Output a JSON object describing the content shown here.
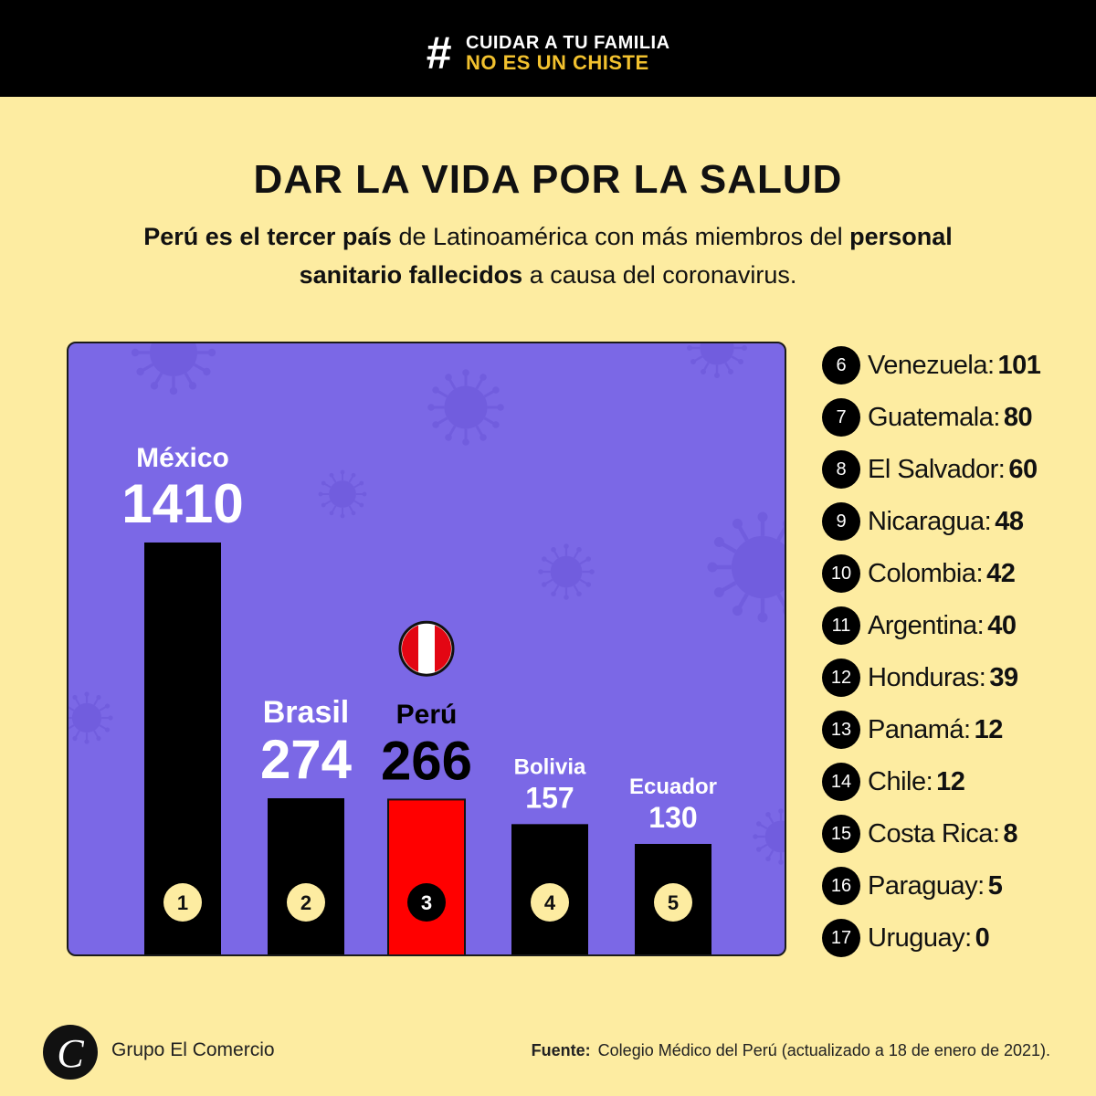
{
  "banner": {
    "hash": "#",
    "line1": "CUIDAR A TU FAMILIA",
    "line2": "NO ES UN CHISTE"
  },
  "title": "DAR LA VIDA POR LA SALUD",
  "subtitle": {
    "line1_bold": "Perú es el tercer país",
    "line1_regular": " de Latinoamérica con más miembros del ",
    "line1_bold2": "personal",
    "line2_bold": "sanitario fallecidos",
    "line2_regular": " a causa del coronavirus."
  },
  "chart_data": {
    "type": "bar",
    "title": "",
    "xlabel": "",
    "ylabel": "",
    "categories": [
      "México",
      "Brasil",
      "Perú",
      "Bolivia",
      "Ecuador"
    ],
    "values": [
      1410,
      274,
      266,
      157,
      130
    ],
    "ranks": [
      "1",
      "2",
      "3",
      "4",
      "5"
    ],
    "highlight": "Perú",
    "colors": {
      "bar": "#000000",
      "highlight_bar": "#ff0000",
      "panel": "#7b68e6",
      "label": "#ffffff",
      "highlight_label": "#000000",
      "badge": "#fdeca1"
    },
    "ylim": [
      0,
      1410
    ]
  },
  "ranking_list": [
    {
      "rank": "6",
      "country": "Venezuela:",
      "value": "101"
    },
    {
      "rank": "7",
      "country": "Guatemala:",
      "value": "80"
    },
    {
      "rank": "8",
      "country": "El Salvador:",
      "value": "60"
    },
    {
      "rank": "9",
      "country": "Nicaragua:",
      "value": "48"
    },
    {
      "rank": "10",
      "country": "Colombia:",
      "value": "42"
    },
    {
      "rank": "11",
      "country": "Argentina:",
      "value": "40"
    },
    {
      "rank": "12",
      "country": "Honduras:",
      "value": "39"
    },
    {
      "rank": "13",
      "country": "Panamá:",
      "value": "12"
    },
    {
      "rank": "14",
      "country": "Chile:",
      "value": "12"
    },
    {
      "rank": "15",
      "country": "Costa Rica:",
      "value": "8"
    },
    {
      "rank": "16",
      "country": "Paraguay:",
      "value": "5"
    },
    {
      "rank": "17",
      "country": "Uruguay:",
      "value": "0"
    }
  ],
  "footer": {
    "logo_letter": "C",
    "logo_text": "Grupo El Comercio",
    "source_label": "Fuente:",
    "source_text": "Colegio Médico del Perú (actualizado a 18 de enero de 2021)."
  },
  "icons": {
    "flag": "peru-flag-icon",
    "virus": "virus-icon",
    "logo": "el-comercio-logo-icon"
  }
}
